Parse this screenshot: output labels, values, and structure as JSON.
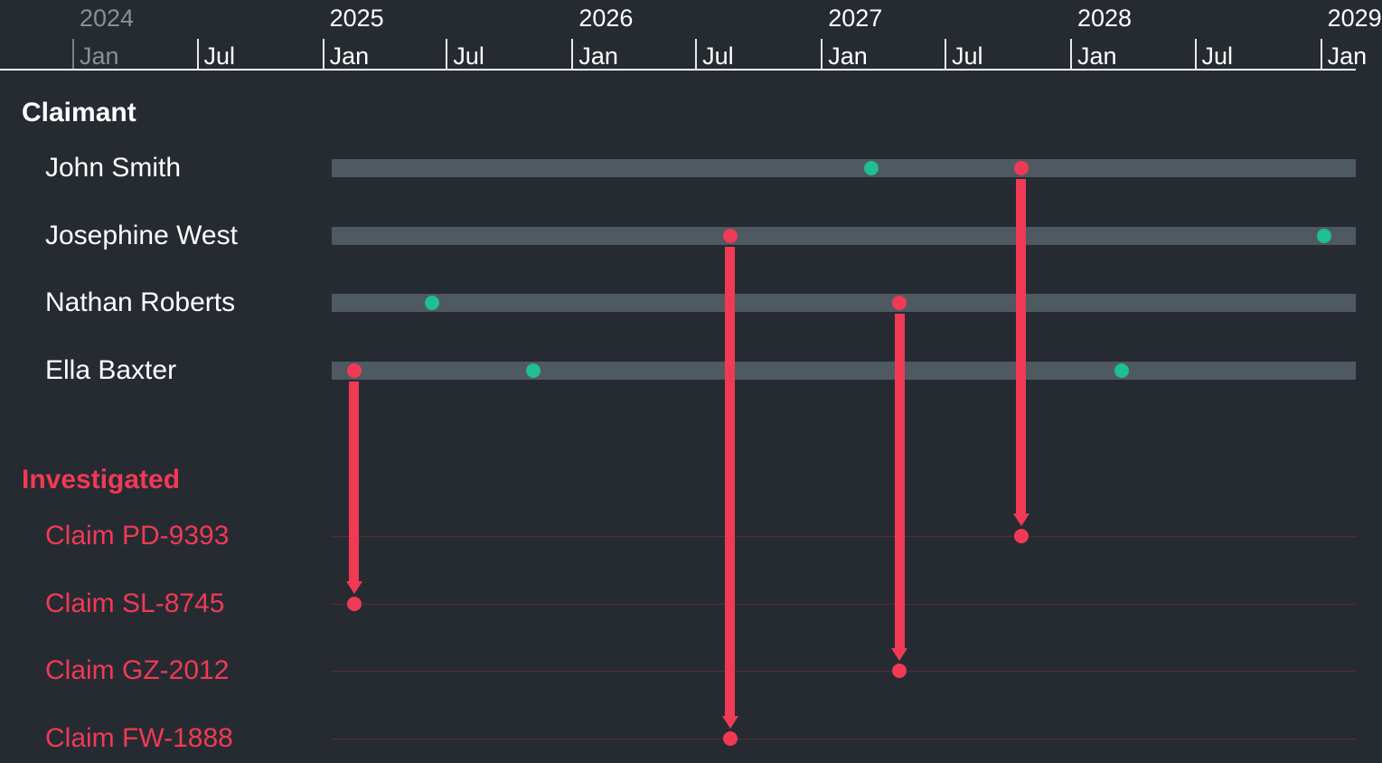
{
  "colors": {
    "background": "#262b32",
    "axis_text": "#ffffff",
    "axis_text_dim": "#8a8f96",
    "claimant_title": "#ffffff",
    "claimant_label": "#ffffff",
    "investigated_title": "#f03a55",
    "investigated_label": "#f03a55",
    "lane_bar": "#4f5962",
    "lane_line": "#5c2a32",
    "event_green": "#1fbf8f",
    "event_red": "#f03a55",
    "link": "#f03a55"
  },
  "timeline": {
    "years": [
      {
        "label": "2024",
        "dim": true
      },
      {
        "label": "2025",
        "dim": false
      },
      {
        "label": "2026",
        "dim": false
      },
      {
        "label": "2027",
        "dim": false
      },
      {
        "label": "2028",
        "dim": false
      },
      {
        "label": "2029",
        "dim": false
      }
    ],
    "months": [
      {
        "label": "Jan",
        "date": "2024-01-01",
        "dim": true
      },
      {
        "label": "Jul",
        "date": "2024-07-01",
        "dim": false
      },
      {
        "label": "Jan",
        "date": "2025-01-01",
        "dim": false
      },
      {
        "label": "Jul",
        "date": "2025-07-01",
        "dim": false
      },
      {
        "label": "Jan",
        "date": "2026-01-01",
        "dim": false
      },
      {
        "label": "Jul",
        "date": "2026-07-01",
        "dim": false
      },
      {
        "label": "Jan",
        "date": "2027-01-01",
        "dim": false
      },
      {
        "label": "Jul",
        "date": "2027-07-01",
        "dim": false
      },
      {
        "label": "Jan",
        "date": "2028-01-01",
        "dim": false
      },
      {
        "label": "Jul",
        "date": "2028-07-01",
        "dim": false
      },
      {
        "label": "Jan",
        "date": "2029-01-01",
        "dim": false
      }
    ]
  },
  "sections": {
    "claimant": {
      "title": "Claimant",
      "rows": [
        {
          "name": "John Smith",
          "events": [
            {
              "date": "2027-03-15",
              "status": "green"
            },
            {
              "date": "2027-10-20",
              "status": "red"
            }
          ]
        },
        {
          "name": "Josephine West",
          "events": [
            {
              "date": "2026-08-20",
              "status": "red"
            },
            {
              "date": "2029-01-05",
              "status": "green"
            }
          ]
        },
        {
          "name": "Nathan Roberts",
          "events": [
            {
              "date": "2025-06-10",
              "status": "green"
            },
            {
              "date": "2027-04-25",
              "status": "red"
            }
          ]
        },
        {
          "name": "Ella Baxter",
          "events": [
            {
              "date": "2025-02-15",
              "status": "red"
            },
            {
              "date": "2025-11-05",
              "status": "green"
            },
            {
              "date": "2028-03-15",
              "status": "green"
            }
          ]
        }
      ]
    },
    "investigated": {
      "title": "Investigated",
      "rows": [
        {
          "name": "Claim PD-9393",
          "events": [
            {
              "date": "2027-10-20",
              "status": "red"
            }
          ]
        },
        {
          "name": "Claim SL-8745",
          "events": [
            {
              "date": "2025-02-15",
              "status": "red"
            }
          ]
        },
        {
          "name": "Claim GZ-2012",
          "events": [
            {
              "date": "2027-04-25",
              "status": "red"
            }
          ]
        },
        {
          "name": "Claim FW-1888",
          "events": [
            {
              "date": "2026-08-20",
              "status": "red"
            }
          ]
        }
      ]
    }
  },
  "links": [
    {
      "from": "Ella Baxter",
      "to": "Claim SL-8745",
      "date": "2025-02-15"
    },
    {
      "from": "Josephine West",
      "to": "Claim FW-1888",
      "date": "2026-08-20"
    },
    {
      "from": "Nathan Roberts",
      "to": "Claim GZ-2012",
      "date": "2027-04-25"
    },
    {
      "from": "John Smith",
      "to": "Claim PD-9393",
      "date": "2027-10-20"
    }
  ]
}
